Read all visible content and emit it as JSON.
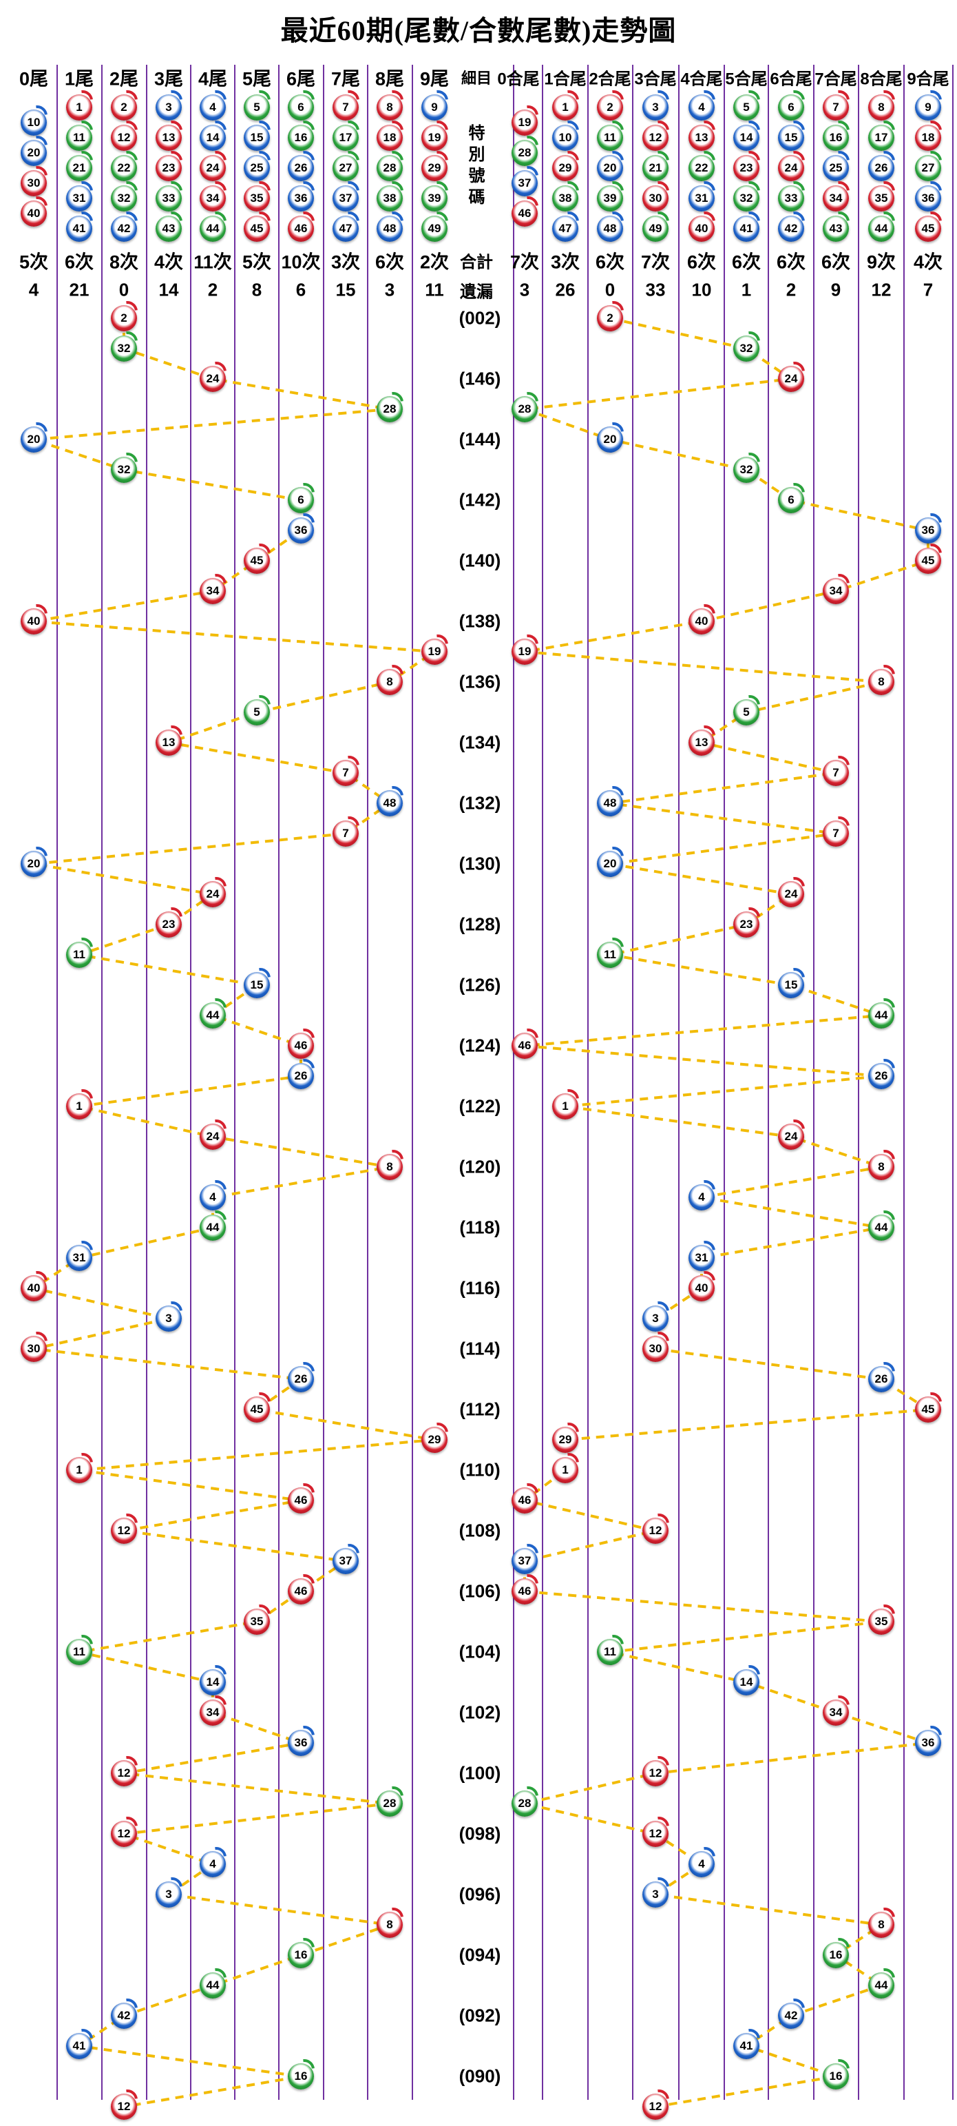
{
  "title": "最近60期(尾數/合數尾數)走勢圖",
  "middle": {
    "detail_label": "細目",
    "special_label": "特別號碼",
    "total_label": "合計",
    "miss_label": "遺漏"
  },
  "tail_columns": [
    {
      "label": "0尾",
      "balls": [
        10,
        20,
        30,
        40
      ],
      "count": "5次",
      "miss": "4"
    },
    {
      "label": "1尾",
      "balls": [
        1,
        11,
        21,
        31,
        41
      ],
      "count": "6次",
      "miss": "21"
    },
    {
      "label": "2尾",
      "balls": [
        2,
        12,
        22,
        32,
        42
      ],
      "count": "8次",
      "miss": "0"
    },
    {
      "label": "3尾",
      "balls": [
        3,
        13,
        23,
        33,
        43
      ],
      "count": "4次",
      "miss": "14"
    },
    {
      "label": "4尾",
      "balls": [
        4,
        14,
        24,
        34,
        44
      ],
      "count": "11次",
      "miss": "2"
    },
    {
      "label": "5尾",
      "balls": [
        5,
        15,
        25,
        35,
        45
      ],
      "count": "5次",
      "miss": "8"
    },
    {
      "label": "6尾",
      "balls": [
        6,
        16,
        26,
        36,
        46
      ],
      "count": "10次",
      "miss": "6"
    },
    {
      "label": "7尾",
      "balls": [
        7,
        17,
        27,
        37,
        47
      ],
      "count": "3次",
      "miss": "15"
    },
    {
      "label": "8尾",
      "balls": [
        8,
        18,
        28,
        38,
        48
      ],
      "count": "6次",
      "miss": "3"
    },
    {
      "label": "9尾",
      "balls": [
        9,
        19,
        29,
        39,
        49
      ],
      "count": "2次",
      "miss": "11"
    }
  ],
  "sum_tail_columns": [
    {
      "label": "0合尾",
      "balls": [
        19,
        28,
        37,
        46
      ],
      "count": "7次",
      "miss": "3"
    },
    {
      "label": "1合尾",
      "balls": [
        1,
        10,
        29,
        38,
        47
      ],
      "count": "3次",
      "miss": "26"
    },
    {
      "label": "2合尾",
      "balls": [
        2,
        11,
        20,
        39,
        48
      ],
      "count": "6次",
      "miss": "0"
    },
    {
      "label": "3合尾",
      "balls": [
        3,
        12,
        21,
        30,
        49
      ],
      "count": "7次",
      "miss": "33"
    },
    {
      "label": "4合尾",
      "balls": [
        4,
        13,
        22,
        31,
        40
      ],
      "count": "6次",
      "miss": "10"
    },
    {
      "label": "5合尾",
      "balls": [
        5,
        14,
        23,
        32,
        41
      ],
      "count": "6次",
      "miss": "1"
    },
    {
      "label": "6合尾",
      "balls": [
        6,
        15,
        24,
        33,
        42
      ],
      "count": "6次",
      "miss": "2"
    },
    {
      "label": "7合尾",
      "balls": [
        7,
        16,
        25,
        34,
        43
      ],
      "count": "6次",
      "miss": "9"
    },
    {
      "label": "8合尾",
      "balls": [
        8,
        17,
        26,
        35,
        44
      ],
      "count": "9次",
      "miss": "12"
    },
    {
      "label": "9合尾",
      "balls": [
        9,
        18,
        27,
        36,
        45
      ],
      "count": "4次",
      "miss": "7"
    }
  ],
  "chart_data": {
    "type": "line",
    "title": "最近60期(尾數/合數尾數)走勢圖",
    "x_axis_left": [
      "0尾",
      "1尾",
      "2尾",
      "3尾",
      "4尾",
      "5尾",
      "6尾",
      "7尾",
      "8尾",
      "9尾"
    ],
    "x_axis_right": [
      "0合尾",
      "1合尾",
      "2合尾",
      "3合尾",
      "4合尾",
      "5合尾",
      "6合尾",
      "7合尾",
      "8合尾",
      "9合尾"
    ],
    "period_labels": [
      "(002)",
      "(146)",
      "(144)",
      "(142)",
      "(140)",
      "(138)",
      "(136)",
      "(134)",
      "(132)",
      "(130)",
      "(128)",
      "(126)",
      "(124)",
      "(122)",
      "(120)",
      "(118)",
      "(116)",
      "(114)",
      "(112)",
      "(110)",
      "(108)",
      "(106)",
      "(104)",
      "(102)",
      "(100)",
      "(098)",
      "(096)",
      "(094)",
      "(092)",
      "(090)"
    ],
    "special_numbers": [
      2,
      32,
      24,
      28,
      20,
      32,
      6,
      36,
      45,
      34,
      40,
      19,
      8,
      5,
      13,
      7,
      48,
      7,
      20,
      24,
      23,
      11,
      15,
      44,
      46,
      26,
      1,
      24,
      8,
      4,
      44,
      31,
      40,
      3,
      30,
      26,
      45,
      29,
      1,
      46,
      12,
      37,
      46,
      35,
      11,
      14,
      34,
      36,
      12,
      28,
      12,
      4,
      3,
      8,
      16,
      44,
      42,
      41,
      16,
      12
    ],
    "legend_position": "top",
    "grid": "vertical-lines"
  },
  "ball_colors": {
    "red": [
      1,
      2,
      7,
      8,
      12,
      13,
      18,
      19,
      23,
      24,
      29,
      30,
      34,
      35,
      40,
      45,
      46
    ],
    "blue": [
      3,
      4,
      9,
      10,
      14,
      15,
      20,
      25,
      26,
      31,
      36,
      37,
      41,
      42,
      47,
      48
    ],
    "green": [
      5,
      6,
      11,
      16,
      17,
      21,
      22,
      27,
      28,
      32,
      33,
      38,
      39,
      43,
      44,
      49
    ]
  },
  "colors": {
    "grid_line": "#7030A0",
    "trend_line": "#F2BB05",
    "ball_red": "#D5212E",
    "ball_blue": "#1F63C9",
    "ball_green": "#2AA23C",
    "text": "#000000"
  }
}
